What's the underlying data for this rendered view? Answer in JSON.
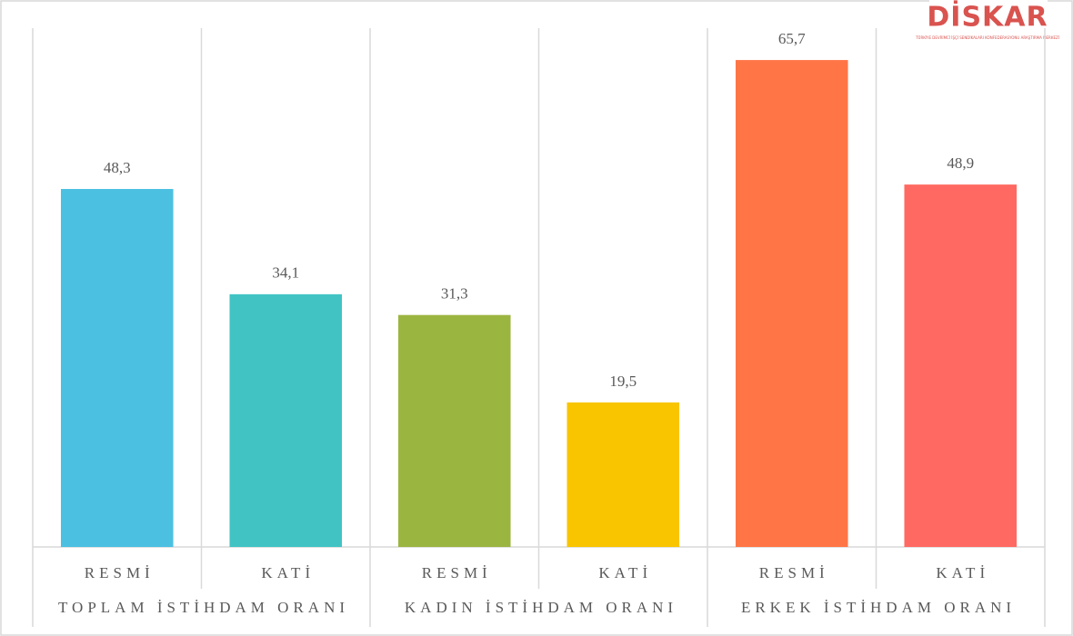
{
  "chart_data": {
    "type": "bar",
    "logo": "DİSKAR",
    "logo_subtitle": "TÜRKİYE DEVRİMCİ İŞÇİ SENDİKALARI KONFEDERASYONU ARAŞTIRMA MERKEZİ",
    "categories": [
      "RESMİ",
      "KATİ",
      "RESMİ",
      "KATİ",
      "RESMİ",
      "KATİ"
    ],
    "groups": [
      "TOPLAM İSTİHDAM ORANI",
      "KADIN İSTİHDAM ORANI",
      "ERKEK İSTİHDAM ORANI"
    ],
    "values": [
      48.3,
      34.1,
      31.3,
      19.5,
      65.7,
      48.9
    ],
    "value_labels": [
      "48,3",
      "34,1",
      "31,3",
      "19,5",
      "65,7",
      "48,9"
    ],
    "colors": [
      "#4bc0e1",
      "#41c3c3",
      "#9bb541",
      "#f8c500",
      "#ff7546",
      "#ff6961"
    ],
    "ylim": [
      0,
      70
    ]
  }
}
